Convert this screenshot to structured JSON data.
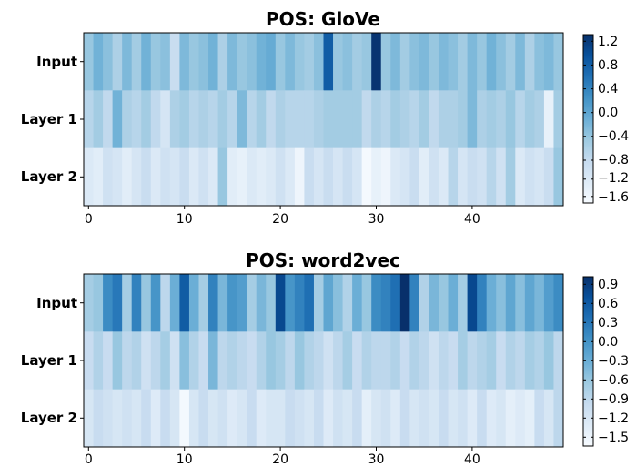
{
  "chart_data": [
    {
      "type": "heatmap",
      "title": "POS: GloVe",
      "rows": [
        "Input",
        "Layer 1",
        "Layer 2"
      ],
      "x_ticks": [
        "0",
        "10",
        "20",
        "30",
        "40"
      ],
      "x": [
        0,
        1,
        2,
        3,
        4,
        5,
        6,
        7,
        8,
        9,
        10,
        11,
        12,
        13,
        14,
        15,
        16,
        17,
        18,
        19,
        20,
        21,
        22,
        23,
        24,
        25,
        26,
        27,
        28,
        29,
        30,
        31,
        32,
        33,
        34,
        35,
        36,
        37,
        38,
        39,
        40,
        41,
        42,
        43,
        44,
        45,
        46,
        47,
        48,
        49
      ],
      "colorbar_ticks": [
        "1.2",
        "0.8",
        "0.4",
        "0.0",
        "−0.4",
        "−0.8",
        "−1.2",
        "−1.6"
      ],
      "vmin": -1.75,
      "vmax": 1.45,
      "values": [
        [
          -0.5,
          -0.2,
          -0.4,
          -0.7,
          -0.3,
          -0.6,
          -0.2,
          -0.5,
          -0.4,
          -1.0,
          -0.3,
          -0.5,
          -0.4,
          -0.2,
          -0.7,
          -0.3,
          -0.5,
          -0.4,
          -0.2,
          -0.1,
          -0.5,
          -0.3,
          -0.5,
          -0.6,
          -0.4,
          0.9,
          -0.5,
          -0.4,
          -0.6,
          -0.5,
          1.4,
          -0.5,
          -0.3,
          -0.6,
          -0.4,
          -0.3,
          -0.5,
          -0.3,
          -0.4,
          -0.6,
          -0.3,
          -0.5,
          -0.2,
          -0.4,
          -0.6,
          -0.3,
          -0.7,
          -0.4,
          -0.3,
          -0.5
        ],
        [
          -0.8,
          -0.6,
          -0.9,
          -0.2,
          -0.7,
          -0.8,
          -0.6,
          -0.9,
          -1.2,
          -0.7,
          -0.6,
          -0.8,
          -0.7,
          -0.8,
          -0.6,
          -0.8,
          -0.3,
          -0.8,
          -0.6,
          -0.9,
          -0.7,
          -0.8,
          -0.8,
          -0.8,
          -0.7,
          -0.6,
          -0.6,
          -0.6,
          -0.6,
          -0.9,
          -0.7,
          -0.8,
          -0.6,
          -0.7,
          -0.8,
          -0.6,
          -0.9,
          -0.7,
          -0.7,
          -0.6,
          -0.3,
          -0.7,
          -0.6,
          -0.7,
          -0.5,
          -0.8,
          -0.6,
          -0.7,
          -1.5,
          -0.6
        ],
        [
          -1.3,
          -1.4,
          -1.1,
          -1.2,
          -1.4,
          -1.2,
          -1.0,
          -1.3,
          -1.1,
          -1.2,
          -1.0,
          -1.3,
          -1.1,
          -1.3,
          -0.5,
          -1.4,
          -1.5,
          -1.3,
          -1.4,
          -1.3,
          -1.1,
          -1.3,
          -1.6,
          -1.0,
          -1.2,
          -1.0,
          -1.2,
          -1.0,
          -1.2,
          -1.7,
          -1.5,
          -1.6,
          -1.3,
          -1.2,
          -1.0,
          -1.4,
          -1.1,
          -1.3,
          -0.8,
          -1.2,
          -1.0,
          -1.1,
          -0.8,
          -1.1,
          -0.6,
          -1.3,
          -1.1,
          -1.2,
          -1.0,
          -0.5
        ]
      ]
    },
    {
      "type": "heatmap",
      "title": "POS: word2vec",
      "rows": [
        "Input",
        "Layer 1",
        "Layer 2"
      ],
      "x_ticks": [
        "0",
        "10",
        "20",
        "30",
        "40"
      ],
      "x": [
        0,
        1,
        2,
        3,
        4,
        5,
        6,
        7,
        8,
        9,
        10,
        11,
        12,
        13,
        14,
        15,
        16,
        17,
        18,
        19,
        20,
        21,
        22,
        23,
        24,
        25,
        26,
        27,
        28,
        29,
        30,
        31,
        32,
        33,
        34,
        35,
        36,
        37,
        38,
        39,
        40,
        41,
        42,
        43,
        44,
        45,
        46,
        47,
        48,
        49
      ],
      "colorbar_ticks": [
        "0.9",
        "0.6",
        "0.3",
        "0.0",
        "−0.3",
        "−0.6",
        "−0.9",
        "−1.2",
        "−1.5"
      ],
      "vmin": -1.65,
      "vmax": 1.05,
      "values": [
        [
          -0.7,
          -0.6,
          0.1,
          0.3,
          -0.7,
          0.2,
          -0.6,
          0.0,
          -0.9,
          -0.3,
          0.6,
          -0.3,
          -0.7,
          0.2,
          -0.4,
          0.0,
          -0.1,
          -0.7,
          -0.4,
          -0.6,
          0.8,
          0.0,
          0.2,
          0.4,
          -0.7,
          -0.2,
          -0.5,
          -0.8,
          -0.3,
          -0.6,
          0.1,
          0.2,
          0.4,
          1.1,
          0.2,
          -0.8,
          -0.4,
          -0.6,
          -0.3,
          -0.7,
          0.8,
          0.2,
          -0.3,
          -0.5,
          -0.2,
          -0.5,
          -0.2,
          -0.4,
          -0.1,
          0.1
        ],
        [
          -1.0,
          -0.8,
          -1.0,
          -0.6,
          -0.9,
          -0.8,
          -1.1,
          -0.9,
          -0.7,
          -1.1,
          -0.5,
          -0.8,
          -1.0,
          -0.4,
          -0.9,
          -0.8,
          -0.9,
          -1.0,
          -0.8,
          -0.6,
          -0.7,
          -0.9,
          -0.6,
          -0.8,
          -0.9,
          -1.1,
          -0.9,
          -0.7,
          -1.0,
          -0.8,
          -0.9,
          -0.9,
          -0.8,
          -1.0,
          -0.8,
          -0.9,
          -1.1,
          -0.9,
          -1.0,
          -0.7,
          -0.9,
          -0.8,
          -0.7,
          -1.0,
          -0.8,
          -0.9,
          -0.7,
          -0.8,
          -0.6,
          -0.9
        ],
        [
          -1.2,
          -1.0,
          -1.1,
          -1.2,
          -1.1,
          -1.2,
          -1.0,
          -1.3,
          -1.0,
          -1.2,
          -1.6,
          -1.2,
          -1.0,
          -1.2,
          -1.1,
          -1.3,
          -1.2,
          -1.0,
          -1.3,
          -1.2,
          -1.2,
          -1.0,
          -1.1,
          -1.2,
          -1.0,
          -1.3,
          -1.1,
          -1.2,
          -1.0,
          -1.4,
          -1.2,
          -1.1,
          -1.3,
          -1.0,
          -1.2,
          -1.1,
          -1.2,
          -1.0,
          -1.2,
          -1.1,
          -1.3,
          -1.0,
          -1.3,
          -1.2,
          -1.4,
          -1.3,
          -1.4,
          -1.0,
          -1.2,
          -0.9
        ]
      ]
    }
  ]
}
